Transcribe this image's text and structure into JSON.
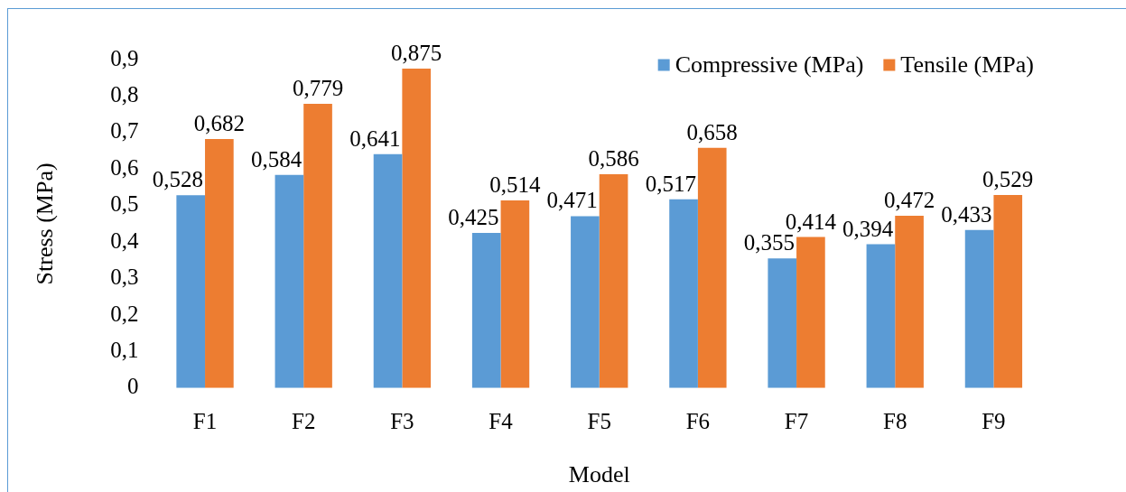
{
  "chart_data": {
    "type": "bar",
    "xlabel": "Model",
    "ylabel": "Stress (MPa)",
    "categories": [
      "F1",
      "F2",
      "F3",
      "F4",
      "F5",
      "F6",
      "F7",
      "F8",
      "F9"
    ],
    "series": [
      {
        "name": "Compressive (MPa)",
        "color": "#5b9bd5",
        "values": [
          0.528,
          0.584,
          0.641,
          0.425,
          0.471,
          0.517,
          0.355,
          0.394,
          0.433
        ],
        "value_labels": [
          "0,528",
          "0,584",
          "0,641",
          "0,425",
          "0,471",
          "0,517",
          "0,355",
          "0,394",
          "0,433"
        ]
      },
      {
        "name": "Tensile (MPa)",
        "color": "#ed7d31",
        "values": [
          0.682,
          0.779,
          0.875,
          0.514,
          0.586,
          0.658,
          0.414,
          0.472,
          0.529
        ],
        "value_labels": [
          "0,682",
          "0,779",
          "0,875",
          "0,514",
          "0,586",
          "0,658",
          "0,414",
          "0,472",
          "0,529"
        ]
      }
    ],
    "ylim": [
      0,
      0.9
    ],
    "yticks": [
      0,
      {
        "value": 0.1,
        "label": "0,1"
      },
      {
        "value": 0.2,
        "label": "0,2"
      },
      {
        "value": 0.3,
        "label": "0,3"
      },
      {
        "value": 0.4,
        "label": "0,4"
      },
      {
        "value": 0.5,
        "label": "0,5"
      },
      {
        "value": 0.6,
        "label": "0,6"
      },
      {
        "value": 0.7,
        "label": "0,7"
      },
      {
        "value": 0.8,
        "label": "0,8"
      },
      {
        "value": 0.9,
        "label": "0,9"
      }
    ],
    "grid": false,
    "legend": "top right"
  }
}
